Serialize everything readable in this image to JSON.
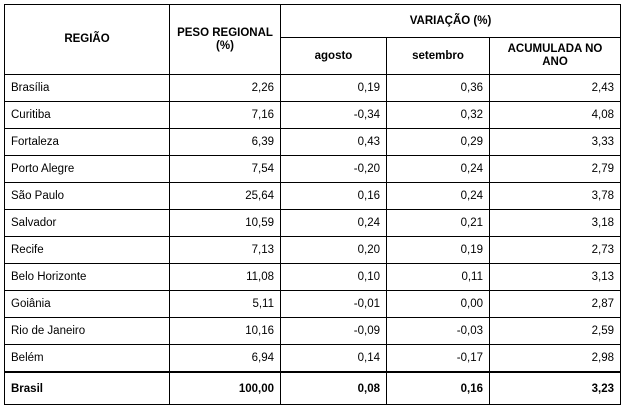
{
  "table": {
    "headers": {
      "regiao": "REGIÃO",
      "peso": "PESO REGIONAL (%)",
      "variacao": "VARIAÇÃO (%)",
      "agosto": "agosto",
      "setembro": "setembro",
      "acumulada": "ACUMULADA NO ANO"
    },
    "rows": [
      {
        "regiao": "Brasília",
        "peso": "2,26",
        "agosto": "0,19",
        "setembro": "0,36",
        "acumulada": "2,43"
      },
      {
        "regiao": "Curitiba",
        "peso": "7,16",
        "agosto": "-0,34",
        "setembro": "0,32",
        "acumulada": "4,08"
      },
      {
        "regiao": "Fortaleza",
        "peso": "6,39",
        "agosto": "0,43",
        "setembro": "0,29",
        "acumulada": "3,33"
      },
      {
        "regiao": "Porto Alegre",
        "peso": "7,54",
        "agosto": "-0,20",
        "setembro": "0,24",
        "acumulada": "2,79"
      },
      {
        "regiao": "São Paulo",
        "peso": "25,64",
        "agosto": "0,16",
        "setembro": "0,24",
        "acumulada": "3,78"
      },
      {
        "regiao": "Salvador",
        "peso": "10,59",
        "agosto": "0,24",
        "setembro": "0,21",
        "acumulada": "3,18"
      },
      {
        "regiao": "Recife",
        "peso": "7,13",
        "agosto": "0,20",
        "setembro": "0,19",
        "acumulada": "2,73"
      },
      {
        "regiao": "Belo Horizonte",
        "peso": "11,08",
        "agosto": "0,10",
        "setembro": "0,11",
        "acumulada": "3,13"
      },
      {
        "regiao": "Goiânia",
        "peso": "5,11",
        "agosto": "-0,01",
        "setembro": "0,00",
        "acumulada": "2,87"
      },
      {
        "regiao": "Rio de Janeiro",
        "peso": "10,16",
        "agosto": "-0,09",
        "setembro": "-0,03",
        "acumulada": "2,59"
      },
      {
        "regiao": "Belém",
        "peso": "6,94",
        "agosto": "0,14",
        "setembro": "-0,17",
        "acumulada": "2,98"
      }
    ],
    "total": {
      "regiao": "Brasil",
      "peso": "100,00",
      "agosto": "0,08",
      "setembro": "0,16",
      "acumulada": "3,23"
    }
  }
}
